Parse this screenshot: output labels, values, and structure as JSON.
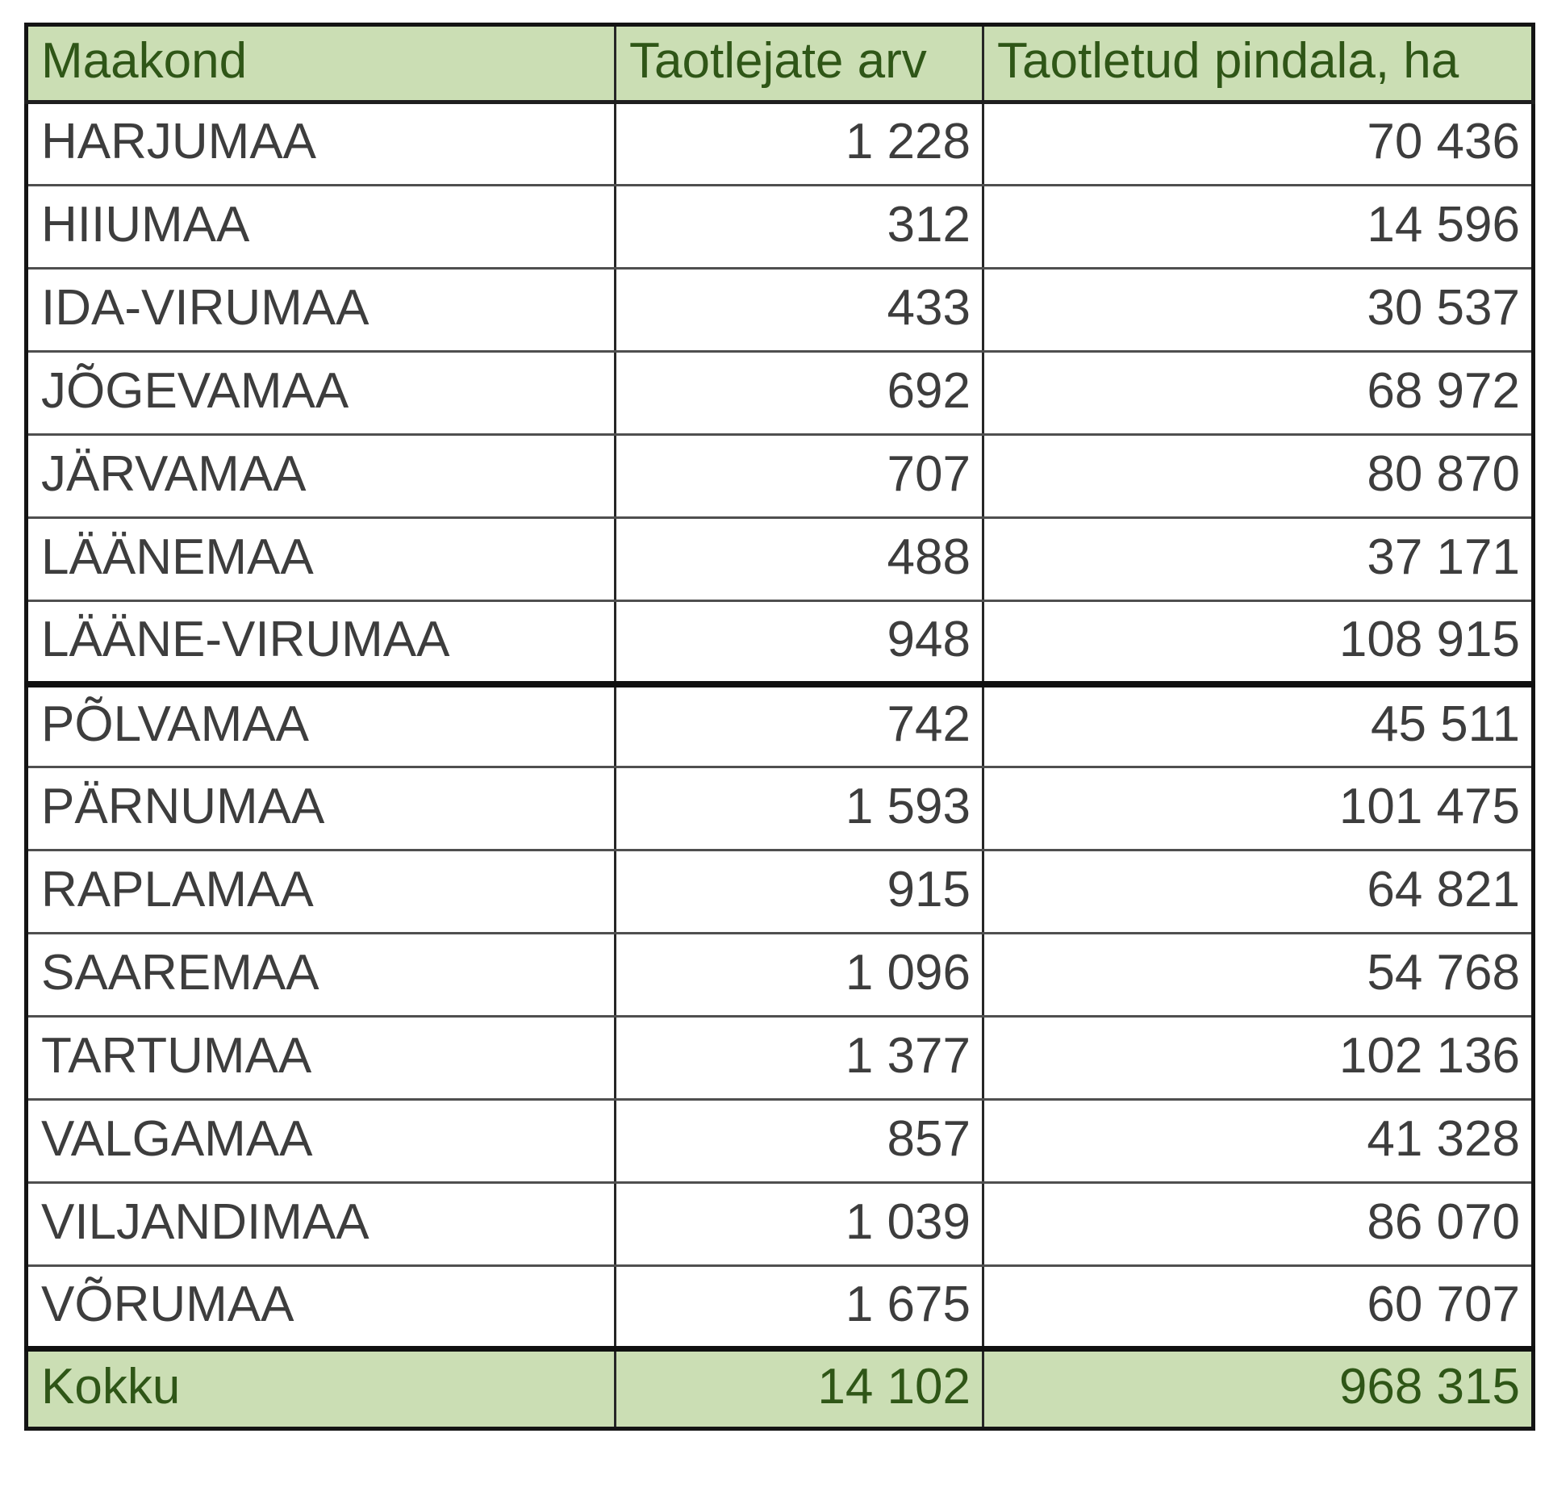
{
  "table": {
    "columns": [
      "Maakond",
      "Taotlejate arv",
      "Taotletud pindala, ha"
    ],
    "rows": [
      {
        "county": "HARJUMAA",
        "applicants": "1 228",
        "area": "70 436"
      },
      {
        "county": "HIIUMAA",
        "applicants": "312",
        "area": "14 596"
      },
      {
        "county": "IDA-VIRUMAA",
        "applicants": "433",
        "area": "30 537"
      },
      {
        "county": "JÕGEVAMAA",
        "applicants": "692",
        "area": "68 972"
      },
      {
        "county": "JÄRVAMAA",
        "applicants": "707",
        "area": "80 870"
      },
      {
        "county": "LÄÄNEMAA",
        "applicants": "488",
        "area": "37 171"
      },
      {
        "county": "LÄÄNE-VIRUMAA",
        "applicants": "948",
        "area": "108 915",
        "separator_after": true
      },
      {
        "county": "PÕLVAMAA",
        "applicants": "742",
        "area": "45 511"
      },
      {
        "county": "PÄRNUMAA",
        "applicants": "1 593",
        "area": "101 475"
      },
      {
        "county": "RAPLAMAA",
        "applicants": "915",
        "area": "64 821"
      },
      {
        "county": "SAAREMAA",
        "applicants": "1 096",
        "area": "54 768"
      },
      {
        "county": "TARTUMAA",
        "applicants": "1 377",
        "area": "102 136"
      },
      {
        "county": "VALGAMAA",
        "applicants": "857",
        "area": "41 328"
      },
      {
        "county": "VILJANDIMAA",
        "applicants": "1 039",
        "area": "86 070"
      },
      {
        "county": "VÕRUMAA",
        "applicants": "1 675",
        "area": "60 707"
      }
    ],
    "total": {
      "label": "Kokku",
      "applicants": "14 102",
      "area": "968 315"
    }
  },
  "colors": {
    "header_bg": "#cbdeb4",
    "header_text": "#2f5617",
    "body_text": "#3d3d3d"
  }
}
